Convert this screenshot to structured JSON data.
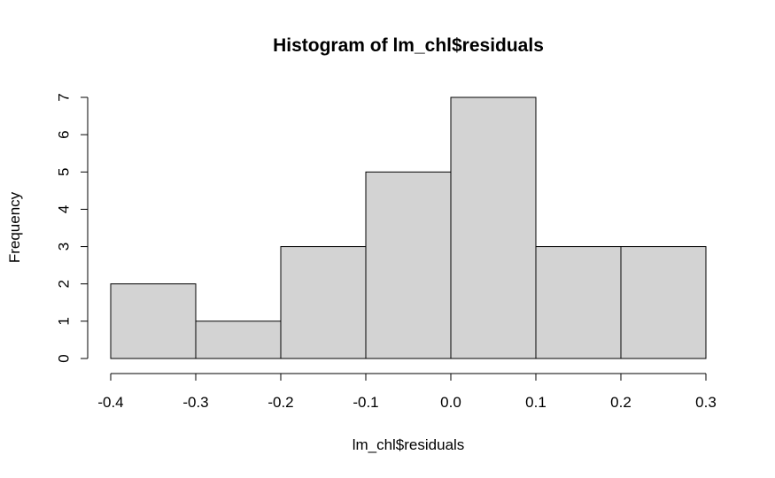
{
  "chart_data": {
    "type": "histogram",
    "title": "Histogram of lm_chl$residuals",
    "xlabel": "lm_chl$residuals",
    "ylabel": "Frequency",
    "bin_edges": [
      -0.4,
      -0.3,
      -0.2,
      -0.1,
      0.0,
      0.1,
      0.2,
      0.3
    ],
    "values": [
      2,
      1,
      3,
      5,
      7,
      3,
      3
    ],
    "xlim": [
      -0.4,
      0.3
    ],
    "ylim": [
      0,
      7
    ],
    "x_ticks": [
      -0.4,
      -0.3,
      -0.2,
      -0.1,
      0.0,
      0.1,
      0.2,
      0.3
    ],
    "x_tick_labels": [
      "-0.4",
      "-0.3",
      "-0.2",
      "-0.1",
      "0.0",
      "0.1",
      "0.2",
      "0.3"
    ],
    "y_ticks": [
      0,
      1,
      2,
      3,
      4,
      5,
      6,
      7
    ],
    "y_tick_labels": [
      "0",
      "1",
      "2",
      "3",
      "4",
      "5",
      "6",
      "7"
    ],
    "grid": false,
    "bar_fill": "#d3d3d3",
    "bar_stroke": "#000000"
  }
}
